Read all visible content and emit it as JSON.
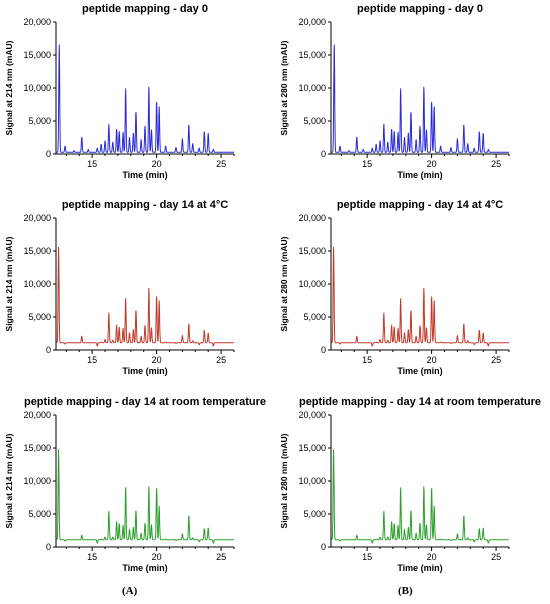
{
  "figure": {
    "labels": [
      "(A)",
      "(B)"
    ]
  },
  "chart_data": [
    {
      "type": "line",
      "title": "peptide mapping - day 0",
      "xlabel": "Time (min)",
      "ylabel": "Signal at 214 nm (mAU)",
      "xlim": [
        12.2,
        26
      ],
      "ylim": [
        0,
        20000
      ],
      "xticks": [
        15,
        20,
        25
      ],
      "yticks": [
        "0",
        "5,000",
        "10,000",
        "15,000",
        "20,000"
      ],
      "color": "#2a2ad8",
      "baseline": 250,
      "peaks": [
        [
          12.45,
          16800
        ],
        [
          12.9,
          1200
        ],
        [
          13.6,
          500
        ],
        [
          14.2,
          2600
        ],
        [
          14.7,
          700
        ],
        [
          15.4,
          900
        ],
        [
          15.7,
          1500
        ],
        [
          16.0,
          2000
        ],
        [
          16.3,
          4500
        ],
        [
          16.6,
          1800
        ],
        [
          16.9,
          3800
        ],
        [
          17.1,
          3500
        ],
        [
          17.4,
          3300
        ],
        [
          17.6,
          9900
        ],
        [
          17.9,
          2500
        ],
        [
          18.2,
          3200
        ],
        [
          18.4,
          6500
        ],
        [
          18.8,
          2200
        ],
        [
          19.1,
          4200
        ],
        [
          19.4,
          10200
        ],
        [
          19.6,
          3700
        ],
        [
          20.0,
          8000
        ],
        [
          20.2,
          7200
        ],
        [
          20.7,
          1200
        ],
        [
          21.5,
          1000
        ],
        [
          22.0,
          2300
        ],
        [
          22.5,
          4500
        ],
        [
          22.8,
          1600
        ],
        [
          23.3,
          900
        ],
        [
          23.7,
          3400
        ],
        [
          24.0,
          3200
        ],
        [
          24.4,
          700
        ]
      ]
    },
    {
      "type": "line",
      "title": "peptide mapping - day 0",
      "xlabel": "Time (min)",
      "ylabel": "Signal at 280 nm (mAU)",
      "xlim": [
        12.2,
        26
      ],
      "ylim": [
        0,
        20000
      ],
      "xticks": [
        15,
        20,
        25
      ],
      "yticks": [
        "0",
        "5,000",
        "10,000",
        "15,000",
        "20,000"
      ],
      "color": "#2a2ad8",
      "baseline": 250,
      "peaks": [
        [
          12.45,
          16800
        ],
        [
          12.9,
          1200
        ],
        [
          13.6,
          500
        ],
        [
          14.2,
          2600
        ],
        [
          14.7,
          700
        ],
        [
          15.4,
          900
        ],
        [
          15.7,
          1500
        ],
        [
          16.0,
          2000
        ],
        [
          16.3,
          4500
        ],
        [
          16.6,
          1800
        ],
        [
          16.9,
          3800
        ],
        [
          17.1,
          3500
        ],
        [
          17.4,
          3300
        ],
        [
          17.6,
          9900
        ],
        [
          17.9,
          2500
        ],
        [
          18.2,
          3200
        ],
        [
          18.4,
          6500
        ],
        [
          18.8,
          2200
        ],
        [
          19.1,
          4200
        ],
        [
          19.4,
          10200
        ],
        [
          19.6,
          3700
        ],
        [
          20.0,
          8000
        ],
        [
          20.2,
          7200
        ],
        [
          20.7,
          1200
        ],
        [
          21.5,
          1000
        ],
        [
          22.0,
          2300
        ],
        [
          22.5,
          4500
        ],
        [
          22.8,
          1600
        ],
        [
          23.3,
          900
        ],
        [
          23.7,
          3400
        ],
        [
          24.0,
          3200
        ],
        [
          24.4,
          700
        ]
      ]
    },
    {
      "type": "line",
      "title": "peptide mapping - day 14 at 4°C",
      "xlabel": "Time (min)",
      "ylabel": "Signal at 214 nm (mAU)",
      "xlim": [
        12.2,
        26
      ],
      "ylim": [
        0,
        20000
      ],
      "xticks": [
        15,
        20,
        25
      ],
      "yticks": [
        "0",
        "5,000",
        "10,000",
        "15,000",
        "20,000"
      ],
      "color": "#c0392b",
      "baseline": 1100,
      "peaks": [
        [
          12.4,
          15600
        ],
        [
          12.9,
          900
        ],
        [
          14.2,
          2100
        ],
        [
          15.4,
          600
        ],
        [
          15.7,
          1200
        ],
        [
          16.0,
          1600
        ],
        [
          16.3,
          5600
        ],
        [
          16.6,
          1500
        ],
        [
          16.9,
          3800
        ],
        [
          17.1,
          3500
        ],
        [
          17.4,
          3300
        ],
        [
          17.6,
          7800
        ],
        [
          17.9,
          2600
        ],
        [
          18.2,
          3100
        ],
        [
          18.4,
          6100
        ],
        [
          18.8,
          2100
        ],
        [
          19.1,
          3700
        ],
        [
          19.4,
          9400
        ],
        [
          19.6,
          3400
        ],
        [
          20.0,
          8200
        ],
        [
          20.2,
          7500
        ],
        [
          20.7,
          1200
        ],
        [
          21.5,
          1000
        ],
        [
          22.0,
          2200
        ],
        [
          22.5,
          4000
        ],
        [
          22.8,
          1400
        ],
        [
          23.3,
          800
        ],
        [
          23.7,
          3000
        ],
        [
          24.0,
          2600
        ],
        [
          24.4,
          600
        ]
      ]
    },
    {
      "type": "line",
      "title": "peptide mapping - day 14 at 4°C",
      "xlabel": "Time (min)",
      "ylabel": "Signal at 280 nm (mAU)",
      "xlim": [
        12.2,
        26
      ],
      "ylim": [
        0,
        20000
      ],
      "xticks": [
        15,
        20,
        25
      ],
      "yticks": [
        "0",
        "5,000",
        "10,000",
        "15,000",
        "20,000"
      ],
      "color": "#c0392b",
      "baseline": 1100,
      "peaks": [
        [
          12.4,
          15600
        ],
        [
          12.9,
          900
        ],
        [
          14.2,
          2100
        ],
        [
          15.4,
          600
        ],
        [
          15.7,
          1200
        ],
        [
          16.0,
          1600
        ],
        [
          16.3,
          5600
        ],
        [
          16.6,
          1500
        ],
        [
          16.9,
          3800
        ],
        [
          17.1,
          3500
        ],
        [
          17.4,
          3300
        ],
        [
          17.6,
          7800
        ],
        [
          17.9,
          2600
        ],
        [
          18.2,
          3100
        ],
        [
          18.4,
          6100
        ],
        [
          18.8,
          2100
        ],
        [
          19.1,
          3700
        ],
        [
          19.4,
          9400
        ],
        [
          19.6,
          3400
        ],
        [
          20.0,
          8200
        ],
        [
          20.2,
          7500
        ],
        [
          20.7,
          1200
        ],
        [
          21.5,
          1000
        ],
        [
          22.0,
          2200
        ],
        [
          22.5,
          4000
        ],
        [
          22.8,
          1400
        ],
        [
          23.3,
          800
        ],
        [
          23.7,
          3000
        ],
        [
          24.0,
          2600
        ],
        [
          24.4,
          600
        ]
      ]
    },
    {
      "type": "line",
      "title": "peptide mapping - day 14 at room temperature",
      "xlabel": "Time (min)",
      "ylabel": "Signal at 214 nm (mAU)",
      "xlim": [
        12.2,
        26
      ],
      "ylim": [
        0,
        20000
      ],
      "xticks": [
        15,
        20,
        25
      ],
      "yticks": [
        "0",
        "5,000",
        "10,000",
        "15,000",
        "20,000"
      ],
      "color": "#2ca02c",
      "baseline": 1100,
      "peaks": [
        [
          12.4,
          14800
        ],
        [
          12.9,
          900
        ],
        [
          14.2,
          1800
        ],
        [
          15.4,
          600
        ],
        [
          15.7,
          1200
        ],
        [
          16.0,
          1500
        ],
        [
          16.3,
          5400
        ],
        [
          16.6,
          1500
        ],
        [
          16.9,
          3900
        ],
        [
          17.1,
          3600
        ],
        [
          17.4,
          3300
        ],
        [
          17.6,
          9000
        ],
        [
          17.9,
          2700
        ],
        [
          18.2,
          3000
        ],
        [
          18.4,
          5600
        ],
        [
          18.8,
          2100
        ],
        [
          19.1,
          3600
        ],
        [
          19.4,
          9200
        ],
        [
          19.6,
          3400
        ],
        [
          20.0,
          9000
        ],
        [
          20.2,
          6200
        ],
        [
          20.7,
          1200
        ],
        [
          21.5,
          1000
        ],
        [
          22.0,
          2000
        ],
        [
          22.5,
          4800
        ],
        [
          22.8,
          1400
        ],
        [
          23.3,
          800
        ],
        [
          23.7,
          2800
        ],
        [
          24.0,
          2900
        ],
        [
          24.4,
          600
        ]
      ]
    },
    {
      "type": "line",
      "title": "peptide mapping - day 14 at room temperature",
      "xlabel": "Time (min)",
      "ylabel": "Signal at 280 nm (mAU)",
      "xlim": [
        12.2,
        26
      ],
      "ylim": [
        0,
        20000
      ],
      "xticks": [
        15,
        20,
        25
      ],
      "yticks": [
        "0",
        "5,000",
        "10,000",
        "15,000",
        "20,000"
      ],
      "color": "#2ca02c",
      "baseline": 1100,
      "peaks": [
        [
          12.4,
          14800
        ],
        [
          12.9,
          900
        ],
        [
          14.2,
          1800
        ],
        [
          15.4,
          600
        ],
        [
          15.7,
          1200
        ],
        [
          16.0,
          1500
        ],
        [
          16.3,
          5400
        ],
        [
          16.6,
          1500
        ],
        [
          16.9,
          3900
        ],
        [
          17.1,
          3600
        ],
        [
          17.4,
          3300
        ],
        [
          17.6,
          9000
        ],
        [
          17.9,
          2700
        ],
        [
          18.2,
          3000
        ],
        [
          18.4,
          5600
        ],
        [
          18.8,
          2100
        ],
        [
          19.1,
          3600
        ],
        [
          19.4,
          9200
        ],
        [
          19.6,
          3400
        ],
        [
          20.0,
          9000
        ],
        [
          20.2,
          6200
        ],
        [
          20.7,
          1200
        ],
        [
          21.5,
          1000
        ],
        [
          22.0,
          2000
        ],
        [
          22.5,
          4800
        ],
        [
          22.8,
          1400
        ],
        [
          23.3,
          800
        ],
        [
          23.7,
          2800
        ],
        [
          24.0,
          2900
        ],
        [
          24.4,
          600
        ]
      ]
    }
  ]
}
